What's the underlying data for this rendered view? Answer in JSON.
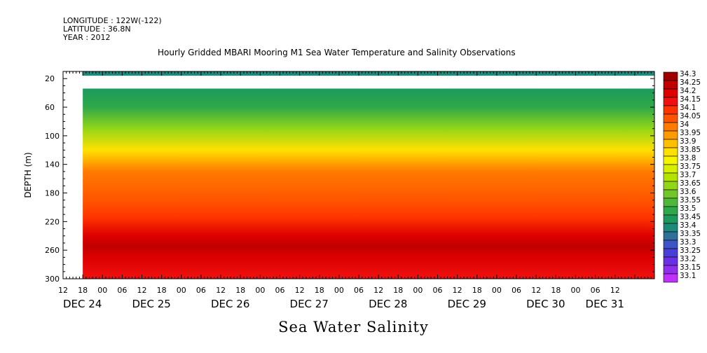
{
  "header": {
    "longitude": "LONGITUDE : 122W(-122)",
    "latitude": "LATITUDE : 36.8N",
    "year": "YEAR : 2012"
  },
  "chart_data": {
    "type": "heatmap",
    "title": "Hourly Gridded MBARI Mooring M1 Sea Water Temperature and Salinity Observations",
    "xlabel": "Sea Water Salinity",
    "ylabel": "DEPTH (m)",
    "y_axis": {
      "ticks": [
        20,
        60,
        100,
        140,
        180,
        220,
        260,
        300
      ],
      "range": [
        10,
        300
      ],
      "inverted": true
    },
    "x_axis": {
      "range_hours": [
        0,
        180
      ],
      "hour_ticks": [
        "12",
        "18",
        "00",
        "06",
        "12",
        "18",
        "00",
        "06",
        "12",
        "18",
        "00",
        "06",
        "12",
        "18",
        "00",
        "06",
        "12",
        "18",
        "00",
        "06",
        "12",
        "18",
        "00",
        "06",
        "12",
        "18",
        "00",
        "06",
        "12"
      ],
      "day_labels": [
        {
          "label": "DEC 24",
          "hour": 0
        },
        {
          "label": "DEC 25",
          "hour": 21
        },
        {
          "label": "DEC 26",
          "hour": 45
        },
        {
          "label": "DEC 27",
          "hour": 69
        },
        {
          "label": "DEC 28",
          "hour": 93
        },
        {
          "label": "DEC 29",
          "hour": 117
        },
        {
          "label": "DEC 30",
          "hour": 141
        },
        {
          "label": "DEC 31",
          "hour": 159
        }
      ],
      "data_start_hour": 6
    },
    "colorbar": {
      "levels": [
        "34.3",
        "34.25",
        "34.2",
        "34.15",
        "34.1",
        "34.05",
        "34",
        "33.95",
        "33.9",
        "33.85",
        "33.8",
        "33.75",
        "33.7",
        "33.65",
        "33.6",
        "33.55",
        "33.5",
        "33.45",
        "33.4",
        "33.35",
        "33.3",
        "33.25",
        "33.2",
        "33.15",
        "33.1"
      ],
      "colors": [
        "#9e0000",
        "#c00000",
        "#dd0000",
        "#f01010",
        "#ff3300",
        "#ff5500",
        "#ff7a00",
        "#ff9a00",
        "#ffbf00",
        "#ffe000",
        "#f5f500",
        "#d6f000",
        "#b5e300",
        "#93d618",
        "#70c62a",
        "#4fb83a",
        "#2fa84a",
        "#1c9a5c",
        "#1d8a7a",
        "#2f6f9a",
        "#3e55c8",
        "#4a3ed8",
        "#6a30e6",
        "#9030ee",
        "#c030ff"
      ]
    },
    "surface_band": {
      "depth_range": [
        10,
        16
      ],
      "value": "33.4"
    },
    "gap": {
      "depth_range": [
        16,
        34
      ]
    },
    "profile": [
      {
        "depth": 34,
        "value": 33.45
      },
      {
        "depth": 60,
        "value": 33.52
      },
      {
        "depth": 90,
        "value": 33.65
      },
      {
        "depth": 120,
        "value": 33.85
      },
      {
        "depth": 150,
        "value": 34.0
      },
      {
        "depth": 190,
        "value": 34.05
      },
      {
        "depth": 215,
        "value": 34.12
      },
      {
        "depth": 240,
        "value": 34.2
      },
      {
        "depth": 255,
        "value": 34.25
      },
      {
        "depth": 270,
        "value": 34.22
      },
      {
        "depth": 300,
        "value": 34.15
      }
    ]
  }
}
